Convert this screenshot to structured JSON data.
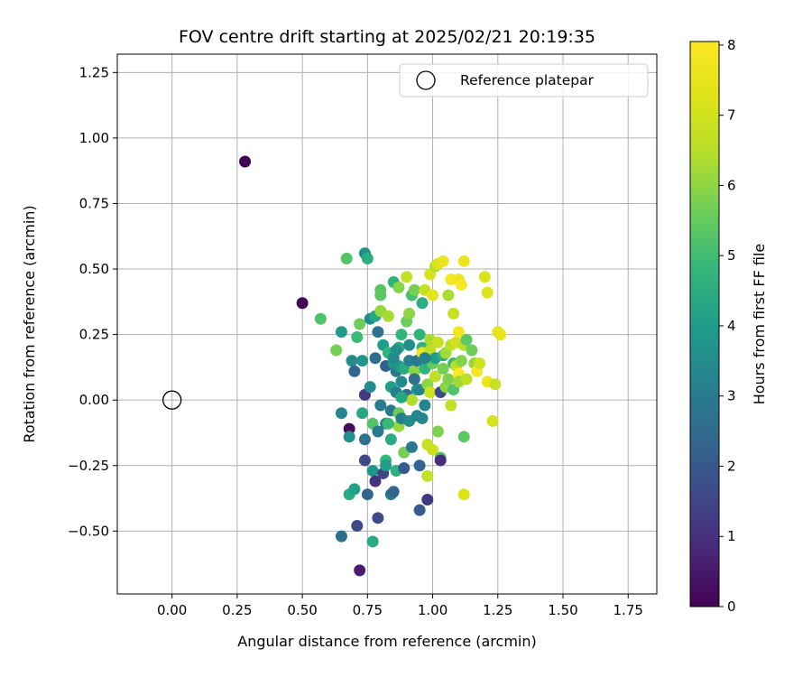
{
  "chart_data": {
    "type": "scatter",
    "title": "FOV centre drift starting at 2025/02/21 20:19:35",
    "xlabel": "Angular distance from reference (arcmin)",
    "ylabel": "Rotation from reference (arcmin)",
    "xlim": [
      -0.21,
      1.86
    ],
    "ylim": [
      -0.74,
      1.32
    ],
    "xticks": [
      "0.00",
      "0.25",
      "0.50",
      "0.75",
      "1.00",
      "1.25",
      "1.50",
      "1.75"
    ],
    "xtick_values": [
      0,
      0.25,
      0.5,
      0.75,
      1.0,
      1.25,
      1.5,
      1.75
    ],
    "yticks": [
      "−0.50",
      "−0.25",
      "0.00",
      "0.25",
      "0.50",
      "0.75",
      "1.00",
      "1.25"
    ],
    "ytick_values": [
      -0.5,
      -0.25,
      0,
      0.25,
      0.5,
      0.75,
      1.0,
      1.25
    ],
    "grid": true,
    "colormap": "viridis",
    "colorbar": {
      "label": "Hours from first FF file",
      "range": [
        0,
        8.05
      ],
      "ticks": [
        "0",
        "1",
        "2",
        "3",
        "4",
        "5",
        "6",
        "7",
        "8"
      ],
      "tick_values": [
        0,
        1,
        2,
        3,
        4,
        5,
        6,
        7,
        8
      ]
    },
    "legend": {
      "position": "top-right",
      "label": "Reference platepar"
    },
    "reference": {
      "x": 0,
      "y": 0
    },
    "points": [
      [
        0.28,
        0.91,
        0.0
      ],
      [
        0.5,
        0.37,
        0.1
      ],
      [
        0.68,
        -0.11,
        0.2
      ],
      [
        0.72,
        -0.65,
        0.6
      ],
      [
        0.67,
        0.54,
        5.3
      ],
      [
        0.74,
        0.56,
        3.6
      ],
      [
        0.75,
        0.54,
        4.5
      ],
      [
        0.57,
        0.31,
        5.2
      ],
      [
        0.63,
        0.19,
        5.7
      ],
      [
        0.65,
        0.26,
        3.9
      ],
      [
        0.65,
        -0.52,
        2.6
      ],
      [
        0.65,
        -0.05,
        3.3
      ],
      [
        0.68,
        -0.14,
        3.6
      ],
      [
        0.68,
        -0.36,
        4.4
      ],
      [
        0.7,
        -0.34,
        4.1
      ],
      [
        0.71,
        -0.48,
        1.6
      ],
      [
        0.69,
        0.15,
        3.5
      ],
      [
        0.7,
        0.11,
        2.4
      ],
      [
        0.71,
        0.24,
        4.9
      ],
      [
        0.72,
        0.29,
        5.6
      ],
      [
        0.73,
        0.15,
        3.8
      ],
      [
        0.73,
        -0.05,
        4.3
      ],
      [
        0.74,
        0.02,
        1.2
      ],
      [
        0.74,
        -0.15,
        2.7
      ],
      [
        0.74,
        -0.23,
        1.6
      ],
      [
        0.75,
        -0.36,
        2.3
      ],
      [
        0.76,
        0.31,
        3.5
      ],
      [
        0.76,
        0.05,
        3.5
      ],
      [
        0.77,
        -0.27,
        3.8
      ],
      [
        0.77,
        -0.09,
        5.3
      ],
      [
        0.77,
        -0.54,
        4.4
      ],
      [
        0.78,
        -0.31,
        1.1
      ],
      [
        0.78,
        0.32,
        4.3
      ],
      [
        0.78,
        0.16,
        2.6
      ],
      [
        0.79,
        0.26,
        2.8
      ],
      [
        0.79,
        -0.12,
        2.9
      ],
      [
        0.79,
        -0.45,
        1.6
      ],
      [
        0.8,
        0.42,
        5.3
      ],
      [
        0.8,
        0.4,
        5.4
      ],
      [
        0.8,
        0.34,
        6.1
      ],
      [
        0.8,
        -0.02,
        3.0
      ],
      [
        0.81,
        0.21,
        4.0
      ],
      [
        0.81,
        -0.28,
        1.5
      ],
      [
        0.82,
        0.13,
        2.2
      ],
      [
        0.82,
        -0.09,
        3.4
      ],
      [
        0.82,
        -0.23,
        4.8
      ],
      [
        0.82,
        -0.25,
        4.0
      ],
      [
        0.83,
        0.32,
        6.3
      ],
      [
        0.83,
        0.18,
        4.7
      ],
      [
        0.84,
        -0.36,
        3.0
      ],
      [
        0.84,
        -0.15,
        4.4
      ],
      [
        0.84,
        0.05,
        4.1
      ],
      [
        0.84,
        -0.04,
        2.9
      ],
      [
        0.85,
        0.45,
        4.7
      ],
      [
        0.85,
        0.14,
        3.9
      ],
      [
        0.85,
        -0.35,
        2.3
      ],
      [
        0.86,
        0.03,
        3.2
      ],
      [
        0.86,
        0.11,
        3.0
      ],
      [
        0.86,
        -0.27,
        4.6
      ],
      [
        0.87,
        0.43,
        5.9
      ],
      [
        0.87,
        0.2,
        4.5
      ],
      [
        0.87,
        0.13,
        3.8
      ],
      [
        0.87,
        -0.05,
        5.6
      ],
      [
        0.87,
        -0.1,
        6.1
      ],
      [
        0.88,
        0.25,
        4.8
      ],
      [
        0.88,
        0.07,
        3.5
      ],
      [
        0.88,
        -0.07,
        3.0
      ],
      [
        0.89,
        -0.26,
        2.0
      ],
      [
        0.89,
        0.12,
        4.4
      ],
      [
        0.89,
        -0.2,
        5.7
      ],
      [
        0.9,
        0.47,
        6.7
      ],
      [
        0.9,
        0.3,
        5.6
      ],
      [
        0.9,
        0.02,
        2.6
      ],
      [
        0.91,
        0.21,
        3.6
      ],
      [
        0.91,
        0.33,
        6.0
      ],
      [
        0.91,
        0.15,
        3.2
      ],
      [
        0.91,
        -0.08,
        3.5
      ],
      [
        0.92,
        0.4,
        5.1
      ],
      [
        0.92,
        -0.18,
        2.9
      ],
      [
        0.92,
        0.0,
        6.4
      ],
      [
        0.93,
        0.42,
        5.7
      ],
      [
        0.93,
        0.11,
        6.0
      ],
      [
        0.94,
        0.15,
        2.9
      ],
      [
        0.94,
        0.04,
        3.7
      ],
      [
        0.94,
        -0.06,
        3.3
      ],
      [
        0.95,
        0.25,
        4.7
      ],
      [
        0.95,
        0.04,
        3.3
      ],
      [
        0.95,
        -0.25,
        2.4
      ],
      [
        0.95,
        -0.42,
        2.1
      ],
      [
        0.96,
        0.2,
        4.6
      ],
      [
        0.96,
        0.37,
        4.5
      ],
      [
        0.96,
        0.18,
        7.6
      ],
      [
        0.96,
        -0.07,
        3.4
      ],
      [
        0.97,
        0.42,
        6.8
      ],
      [
        0.97,
        0.12,
        4.7
      ],
      [
        0.97,
        -0.02,
        3.3
      ],
      [
        0.98,
        0.06,
        6.0
      ],
      [
        0.98,
        -0.17,
        6.8
      ],
      [
        0.98,
        -0.29,
        6.7
      ],
      [
        0.98,
        -0.38,
        1.2
      ],
      [
        0.99,
        0.48,
        7.1
      ],
      [
        0.99,
        0.23,
        6.3
      ],
      [
        0.99,
        0.19,
        6.6
      ],
      [
        0.99,
        0.03,
        6.9
      ],
      [
        1.0,
        0.4,
        7.4
      ],
      [
        1.0,
        0.14,
        5.5
      ],
      [
        1.0,
        -0.19,
        6.9
      ],
      [
        1.01,
        0.16,
        4.1
      ],
      [
        1.01,
        0.09,
        6.6
      ],
      [
        1.01,
        0.51,
        6.4
      ],
      [
        1.02,
        0.52,
        7.2
      ],
      [
        1.02,
        0.22,
        6.8
      ],
      [
        1.02,
        -0.12,
        5.8
      ],
      [
        1.03,
        0.03,
        1.7
      ],
      [
        1.03,
        -0.22,
        5.3
      ],
      [
        1.03,
        -0.23,
        0.9
      ],
      [
        1.04,
        0.17,
        4.6
      ],
      [
        1.04,
        0.53,
        7.6
      ],
      [
        1.04,
        0.12,
        5.7
      ],
      [
        1.05,
        0.18,
        6.2
      ],
      [
        1.05,
        0.05,
        6.0
      ],
      [
        1.06,
        0.4,
        6.3
      ],
      [
        1.06,
        0.08,
        5.8
      ],
      [
        1.07,
        0.46,
        7.9
      ],
      [
        1.07,
        0.21,
        6.6
      ],
      [
        1.07,
        -0.02,
        6.7
      ],
      [
        1.08,
        0.33,
        6.8
      ],
      [
        1.08,
        0.14,
        4.9
      ],
      [
        1.08,
        0.04,
        5.2
      ],
      [
        1.09,
        0.22,
        7.0
      ],
      [
        1.09,
        0.13,
        6.6
      ],
      [
        1.1,
        0.46,
        7.6
      ],
      [
        1.1,
        0.26,
        7.8
      ],
      [
        1.1,
        0.1,
        8.0
      ],
      [
        1.1,
        0.07,
        6.2
      ],
      [
        1.11,
        0.44,
        7.9
      ],
      [
        1.11,
        0.15,
        5.9
      ],
      [
        1.12,
        0.53,
        7.6
      ],
      [
        1.12,
        0.21,
        6.5
      ],
      [
        1.12,
        -0.14,
        5.4
      ],
      [
        1.12,
        -0.36,
        7.2
      ],
      [
        1.13,
        0.23,
        5.4
      ],
      [
        1.13,
        0.08,
        6.6
      ],
      [
        1.15,
        0.19,
        5.6
      ],
      [
        1.16,
        0.14,
        6.1
      ],
      [
        1.17,
        0.11,
        7.9
      ],
      [
        1.18,
        0.14,
        6.9
      ],
      [
        1.2,
        0.47,
        7.2
      ],
      [
        1.21,
        0.41,
        7.2
      ],
      [
        1.21,
        0.07,
        7.6
      ],
      [
        1.23,
        -0.08,
        7.1
      ],
      [
        1.24,
        0.06,
        6.8
      ],
      [
        1.25,
        0.26,
        7.4
      ],
      [
        1.26,
        0.25,
        7.5
      ],
      [
        0.97,
        0.16,
        3.2
      ],
      [
        0.85,
        0.16,
        3.4
      ],
      [
        0.88,
        0.01,
        4.3
      ],
      [
        0.93,
        0.08,
        2.7
      ],
      [
        0.83,
        -0.09,
        4.9
      ],
      [
        0.86,
        0.19,
        3.6
      ]
    ]
  }
}
